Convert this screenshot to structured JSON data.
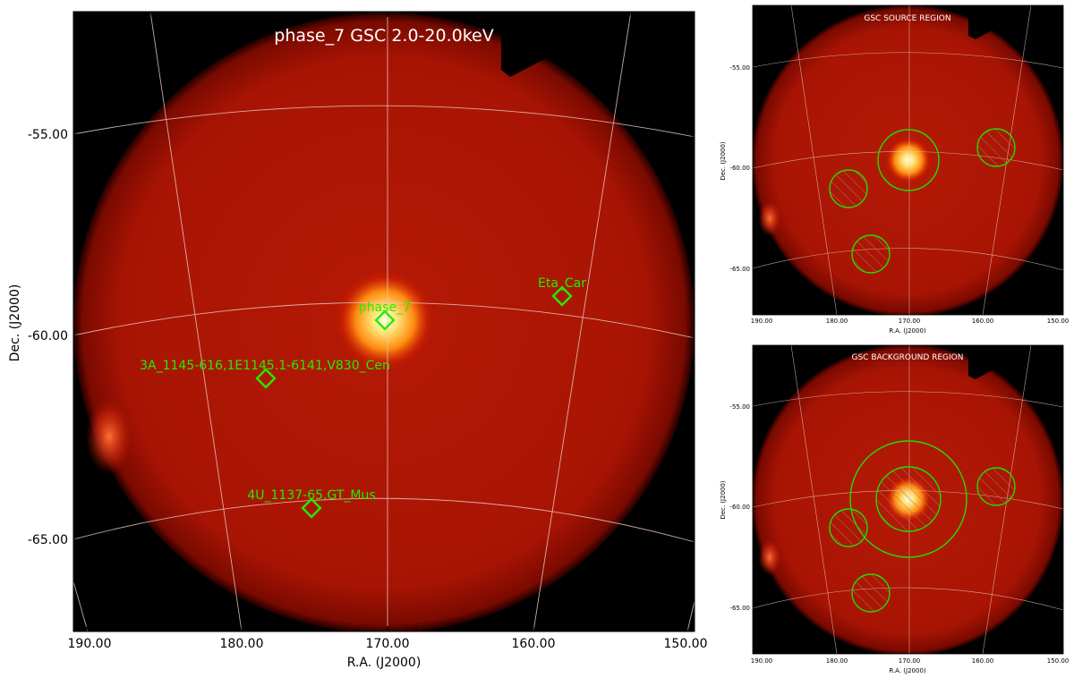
{
  "main_panel": {
    "title": "phase_7 GSC 2.0-20.0keV",
    "xlabel": "R.A. (J2000)",
    "ylabel": "Dec. (J2000)",
    "ra_ticks": [
      "190.00",
      "180.00",
      "170.00",
      "160.00",
      "150.00"
    ],
    "dec_ticks": [
      "-55.00",
      "-60.00",
      "-65.00"
    ],
    "sources": [
      {
        "name": "phase_7"
      },
      {
        "name": "Eta_Car"
      },
      {
        "name": "3A_1145-616,1E1145.1-6141,V830_Cen"
      },
      {
        "name": "4U_1137-65,GT_Mus"
      }
    ],
    "marker_color": "#22ee00",
    "image_colormap": "hot",
    "grid": true
  },
  "source_panel": {
    "title": "GSC SOURCE REGION",
    "xlabel": "R.A. (J2000)",
    "ylabel": "Dec. (J2000)",
    "ra_ticks": [
      "190.00",
      "180.00",
      "170.00",
      "160.00",
      "150.00"
    ],
    "dec_ticks": [
      "-55.00",
      "-60.00",
      "-65.00"
    ]
  },
  "background_panel": {
    "title": "GSC BACKGROUND REGION",
    "xlabel": "R.A. (J2000)",
    "ylabel": "Dec. (J2000)",
    "ra_ticks": [
      "190.00",
      "180.00",
      "170.00",
      "160.00",
      "150.00"
    ],
    "dec_ticks": [
      "-55.00",
      "-60.00",
      "-65.00"
    ]
  }
}
